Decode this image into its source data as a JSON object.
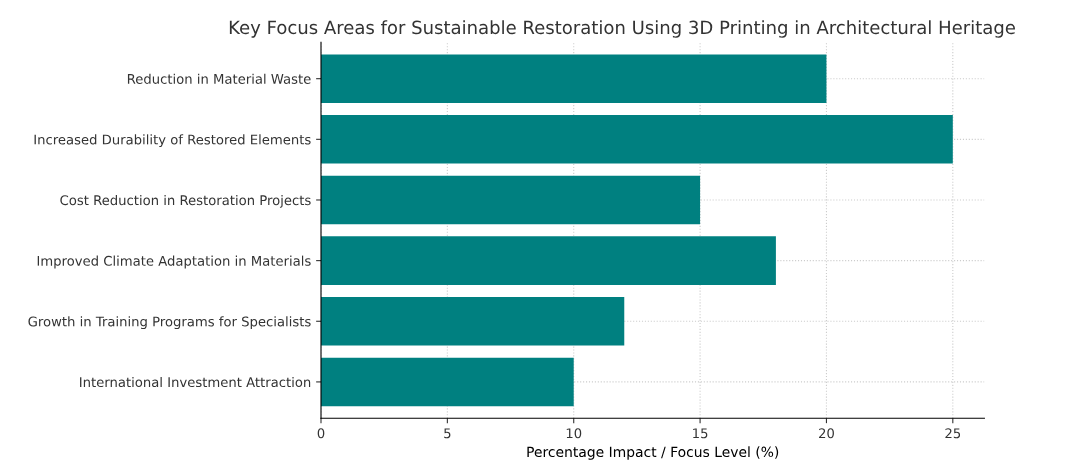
{
  "chart_data": {
    "type": "bar",
    "orientation": "horizontal",
    "title": "Key Focus Areas for Sustainable Restoration Using 3D Printing in Architectural Heritage",
    "xlabel": "Percentage Impact / Focus Level (%)",
    "categories": [
      "Reduction in Material Waste",
      "Increased Durability of Restored Elements",
      "Cost Reduction in Restoration Projects",
      "Improved Climate Adaptation in Materials",
      "Growth in Training Programs for Specialists",
      "International Investment Attraction"
    ],
    "values": [
      20,
      25,
      15,
      18,
      12,
      10
    ],
    "color": "#008080",
    "xlim": [
      0,
      26.25
    ],
    "xticks": [
      0,
      5,
      10,
      15,
      20,
      25
    ],
    "grid": true
  }
}
